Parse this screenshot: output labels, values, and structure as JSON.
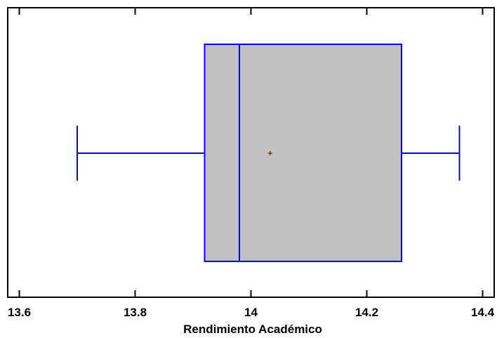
{
  "chart_data": {
    "type": "boxplot",
    "orientation": "horizontal",
    "title": "",
    "xlabel": "Rendimiento Académico",
    "ylabel": "",
    "xlim": [
      13.58,
      14.42
    ],
    "xticks": [
      13.6,
      13.8,
      14.0,
      14.2,
      14.4
    ],
    "xtick_labels": [
      "13.6",
      "13.8",
      "14",
      "14.2",
      "14.4"
    ],
    "grid": false,
    "stats": {
      "min": 13.7,
      "q1": 13.92,
      "median": 13.98,
      "q3": 14.26,
      "max": 14.36,
      "mean": 14.033
    },
    "colors": {
      "box_fill": "#c0c0c0",
      "box_stroke": "#0000ff",
      "mean_marker": "#8b3a00",
      "axis": "#000000"
    }
  }
}
